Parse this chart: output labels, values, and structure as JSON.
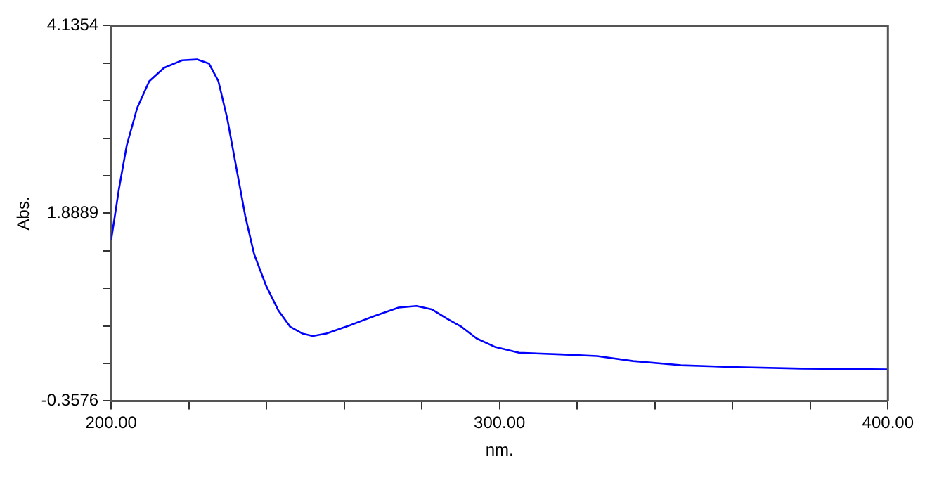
{
  "chart_data": {
    "type": "line",
    "xlabel": "nm.",
    "ylabel": "Abs.",
    "marker": "none",
    "line_style": "solid",
    "grid": false,
    "legend": false,
    "xlim": [
      200,
      400
    ],
    "ylim": [
      -0.3576,
      4.1354
    ],
    "xticks": [
      {
        "value": 200,
        "label": "200.00"
      },
      {
        "value": 220,
        "label": null
      },
      {
        "value": 240,
        "label": null
      },
      {
        "value": 260,
        "label": null
      },
      {
        "value": 280,
        "label": null
      },
      {
        "value": 300,
        "label": "300.00"
      },
      {
        "value": 320,
        "label": null
      },
      {
        "value": 340,
        "label": null
      },
      {
        "value": 360,
        "label": null
      },
      {
        "value": 380,
        "label": null
      },
      {
        "value": 400,
        "label": "400.00"
      }
    ],
    "yticks": [
      -0.3576,
      {
        "value": 0.0917,
        "label": null
      },
      {
        "value": 0.541,
        "label": null
      },
      {
        "value": 0.9903,
        "label": null
      },
      {
        "value": 1.4396,
        "label": null
      },
      1.8889,
      {
        "value": 2.3382,
        "label": null
      },
      {
        "value": 2.7875,
        "label": null
      },
      {
        "value": 3.2368,
        "label": null
      },
      {
        "value": 3.6861,
        "label": null
      },
      4.1354
    ],
    "x": [
      200,
      202,
      204,
      206.7,
      209.8,
      213.6,
      218.3,
      222.1,
      225.2,
      227.6,
      229.9,
      232.2,
      234.5,
      236.8,
      239.9,
      243,
      246.1,
      249.2,
      251.9,
      255.4,
      261.6,
      267.8,
      274,
      278.6,
      282.5,
      286.4,
      290.2,
      294.1,
      298.8,
      305,
      315.8,
      325.1,
      334.4,
      346.7,
      359.1,
      377.7,
      400
    ],
    "series": [
      {
        "color": "#0000ff",
        "values": [
          1.57,
          2.18,
          2.7,
          3.15,
          3.47,
          3.63,
          3.72,
          3.73,
          3.68,
          3.47,
          3.02,
          2.44,
          1.86,
          1.4,
          1.02,
          0.73,
          0.53,
          0.45,
          0.42,
          0.45,
          0.55,
          0.66,
          0.76,
          0.78,
          0.74,
          0.63,
          0.53,
          0.39,
          0.29,
          0.22,
          0.2,
          0.18,
          0.12,
          0.07,
          0.05,
          0.03,
          0.02
        ]
      }
    ]
  }
}
